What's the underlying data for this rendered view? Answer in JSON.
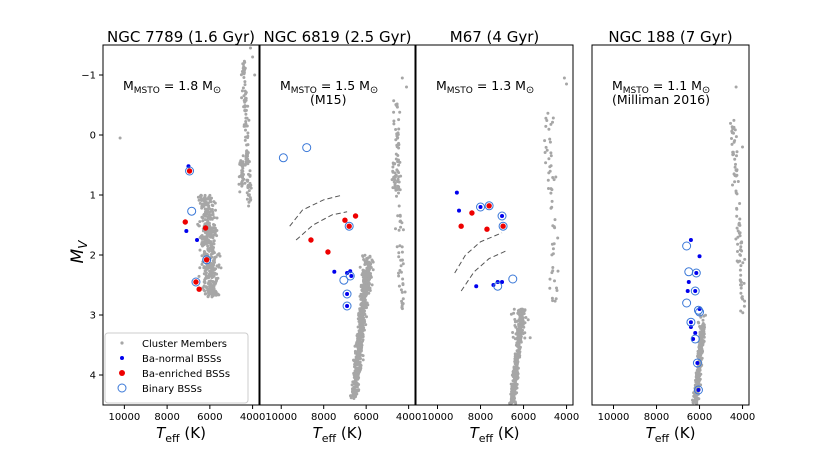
{
  "figure": {
    "ylabel_main": "M",
    "ylabel_sub": "V",
    "xlabel_main": "T",
    "xlabel_sub": "eff",
    "xlabel_unit": " (K)"
  },
  "legend": {
    "placement": "lower-left of first panel",
    "entries": [
      {
        "label": "Cluster Members",
        "marker": "gray-dot"
      },
      {
        "label": "Ba-normal BSSs",
        "marker": "blue-dot"
      },
      {
        "label": "Ba-enriched BSSs",
        "marker": "red-dot"
      },
      {
        "label": "Binary BSSs",
        "marker": "blue-ring"
      }
    ]
  },
  "colors": {
    "members": "#a6a6a6",
    "ba_normal": "#0000ee",
    "ba_enriched": "#ee0000",
    "binary": "#3a78d8",
    "dashed": "#555555"
  },
  "chart_data": [
    {
      "type": "scatter",
      "title": "NGC 7789 (1.6 Gyr)",
      "annotation": {
        "pre": "M",
        "sub": "MSTO",
        "mid": " = 1.8 M",
        "sym": "⊙",
        "line2": ""
      },
      "xlim": [
        11000,
        3700
      ],
      "ylim": [
        4.5,
        -1.5
      ],
      "xticks": [
        10000,
        8000,
        6000,
        4000
      ],
      "yticks": [
        -1,
        0,
        1,
        2,
        3,
        4
      ],
      "bss_normal": [
        [
          7000,
          0.52
        ],
        [
          7100,
          1.6
        ],
        [
          6600,
          1.75
        ]
      ],
      "bss_enriched": [
        [
          6950,
          0.6
        ],
        [
          7150,
          1.45
        ],
        [
          6200,
          1.55
        ],
        [
          6150,
          2.08
        ],
        [
          6650,
          2.45
        ],
        [
          6500,
          2.57
        ]
      ],
      "binary": [
        [
          6950,
          0.6
        ],
        [
          6850,
          1.27
        ],
        [
          6150,
          2.08
        ],
        [
          6650,
          2.45
        ]
      ],
      "dashes": []
    },
    {
      "type": "scatter",
      "title": "NGC 6819 (2.5 Gyr)",
      "annotation": {
        "pre": "M",
        "sub": "MSTO",
        "mid": " = 1.5 M",
        "sym": "⊙",
        "line2": "(M15)"
      },
      "xlim": [
        11000,
        3700
      ],
      "ylim": [
        4.5,
        -1.5
      ],
      "xticks": [
        10000,
        8000,
        6000,
        4000
      ],
      "yticks": [],
      "bss_normal": [
        [
          7500,
          2.28
        ],
        [
          6900,
          2.3
        ],
        [
          6750,
          2.27
        ],
        [
          6700,
          2.35
        ],
        [
          6900,
          2.65
        ],
        [
          6900,
          2.85
        ]
      ],
      "bss_enriched": [
        [
          7000,
          1.42
        ],
        [
          6500,
          1.35
        ],
        [
          6800,
          1.52
        ],
        [
          8600,
          1.75
        ],
        [
          7800,
          1.95
        ]
      ],
      "binary": [
        [
          9900,
          0.38
        ],
        [
          8800,
          0.21
        ],
        [
          6800,
          1.52
        ],
        [
          7050,
          2.42
        ],
        [
          6750,
          2.35
        ],
        [
          6900,
          2.65
        ],
        [
          6900,
          2.85
        ]
      ],
      "dashes": [
        [
          [
            9600,
            1.52
          ],
          [
            9000,
            1.25
          ],
          [
            8000,
            1.08
          ],
          [
            7100,
            1.0
          ]
        ],
        [
          [
            9300,
            1.75
          ],
          [
            8500,
            1.5
          ],
          [
            7600,
            1.33
          ],
          [
            6900,
            1.28
          ]
        ]
      ]
    },
    {
      "type": "scatter",
      "title": "M67 (4 Gyr)",
      "annotation": {
        "pre": "M",
        "sub": "MSTO",
        "mid": " = 1.3 M",
        "sym": "⊙",
        "line2": ""
      },
      "xlim": [
        11000,
        3700
      ],
      "ylim": [
        4.5,
        -1.5
      ],
      "xticks": [
        10000,
        8000,
        6000,
        4000
      ],
      "yticks": [],
      "bss_normal": [
        [
          9100,
          0.96
        ],
        [
          9000,
          1.26
        ],
        [
          8000,
          1.2
        ],
        [
          7200,
          2.45
        ],
        [
          7000,
          1.35
        ],
        [
          7000,
          2.45
        ],
        [
          8200,
          2.52
        ],
        [
          7400,
          2.5
        ]
      ],
      "bss_enriched": [
        [
          8900,
          1.52
        ],
        [
          8400,
          1.3
        ],
        [
          7600,
          1.18
        ],
        [
          7700,
          1.57
        ],
        [
          6950,
          1.52
        ]
      ],
      "binary": [
        [
          8000,
          1.2
        ],
        [
          7600,
          1.18
        ],
        [
          7000,
          1.35
        ],
        [
          6950,
          1.52
        ],
        [
          6500,
          2.4
        ],
        [
          7200,
          2.52
        ]
      ],
      "dashes": [
        [
          [
            9200,
            2.3
          ],
          [
            8700,
            2.0
          ],
          [
            8000,
            1.78
          ],
          [
            7000,
            1.63
          ]
        ],
        [
          [
            8900,
            2.6
          ],
          [
            8300,
            2.28
          ],
          [
            7600,
            2.06
          ],
          [
            6800,
            1.93
          ]
        ]
      ]
    },
    {
      "type": "scatter",
      "title": "NGC 188 (7 Gyr)",
      "annotation": {
        "pre": "M",
        "sub": "MSTO",
        "mid": " = 1.1 M",
        "sym": "⊙",
        "line2": "(Milliman 2016)"
      },
      "xlim": [
        11000,
        3700
      ],
      "ylim": [
        4.5,
        -1.5
      ],
      "xticks": [
        10000,
        8000,
        6000,
        4000
      ],
      "yticks": [],
      "bss_normal": [
        [
          6400,
          1.75
        ],
        [
          6000,
          2.02
        ],
        [
          6500,
          2.45
        ],
        [
          6150,
          2.3
        ],
        [
          6550,
          2.6
        ],
        [
          6200,
          2.6
        ],
        [
          6400,
          3.12
        ],
        [
          6000,
          2.9
        ],
        [
          6200,
          3.3
        ],
        [
          6300,
          3.4
        ],
        [
          6100,
          3.8
        ],
        [
          6050,
          4.25
        ],
        [
          6400,
          3.2
        ]
      ],
      "bss_enriched": [],
      "binary": [
        [
          6600,
          1.85
        ],
        [
          6500,
          2.28
        ],
        [
          6150,
          2.3
        ],
        [
          6200,
          2.6
        ],
        [
          6600,
          2.8
        ],
        [
          6050,
          2.92
        ],
        [
          6000,
          2.95
        ],
        [
          6200,
          3.4
        ],
        [
          6100,
          3.8
        ],
        [
          6050,
          4.25
        ],
        [
          6400,
          3.12
        ]
      ],
      "dashes": []
    }
  ]
}
